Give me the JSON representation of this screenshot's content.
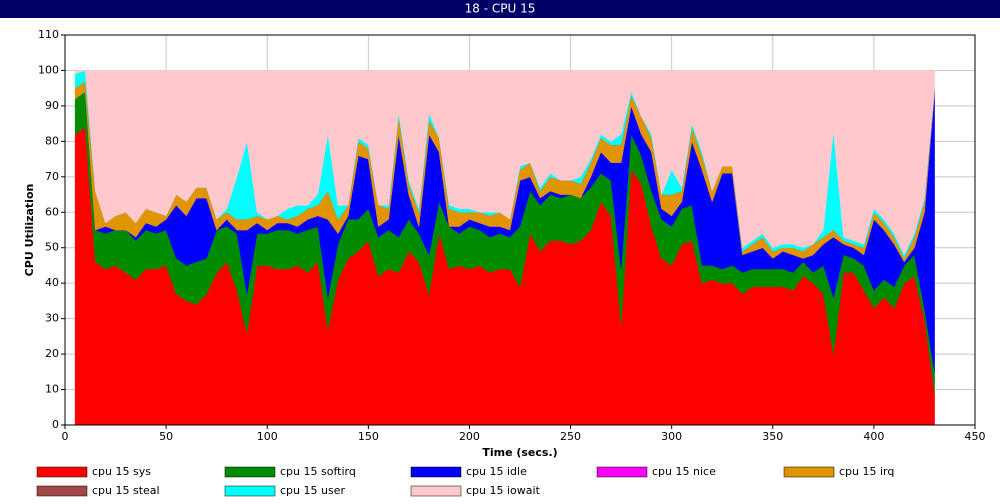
{
  "chart_data": {
    "type": "stacked_area",
    "title": "18 - CPU 15",
    "xlabel": "Time (secs.)",
    "ylabel": "CPU Utilization",
    "xlim": [
      0,
      450
    ],
    "xticks": [
      0,
      50,
      100,
      150,
      200,
      250,
      300,
      350,
      400,
      450
    ],
    "ylim": [
      0,
      110
    ],
    "yticks": [
      0,
      10,
      20,
      30,
      40,
      50,
      60,
      70,
      80,
      90,
      100,
      110
    ],
    "grid": true,
    "x": [
      5,
      10,
      15,
      20,
      25,
      30,
      35,
      40,
      45,
      50,
      55,
      60,
      65,
      70,
      75,
      80,
      85,
      90,
      95,
      100,
      105,
      110,
      115,
      120,
      125,
      130,
      135,
      140,
      145,
      150,
      155,
      160,
      165,
      170,
      175,
      180,
      185,
      190,
      195,
      200,
      205,
      210,
      215,
      220,
      225,
      230,
      235,
      240,
      245,
      250,
      255,
      260,
      265,
      270,
      275,
      280,
      285,
      290,
      295,
      300,
      305,
      310,
      315,
      320,
      325,
      330,
      335,
      340,
      345,
      350,
      355,
      360,
      365,
      370,
      375,
      380,
      385,
      390,
      395,
      400,
      405,
      410,
      415,
      420,
      425,
      430
    ],
    "series": [
      {
        "name": "cpu 15 sys",
        "color": "#ff0000",
        "values": [
          82,
          84,
          46,
          44,
          45,
          43,
          41,
          44,
          44,
          45,
          37,
          35,
          34,
          37,
          43,
          46,
          38,
          26,
          45,
          45,
          44,
          44,
          45,
          43,
          46,
          27,
          41,
          47,
          49,
          52,
          42,
          44,
          43,
          49,
          46,
          37,
          54,
          44,
          45,
          44,
          45,
          43,
          44,
          44,
          39,
          54,
          49,
          52,
          52,
          51,
          52,
          55,
          63,
          59,
          28,
          72,
          68,
          56,
          47,
          45,
          51,
          52,
          40,
          41,
          40,
          40,
          37,
          39,
          39,
          39,
          39,
          38,
          42,
          40,
          37,
          20,
          43,
          43,
          38,
          33,
          36,
          33,
          40,
          42,
          30,
          9
        ]
      },
      {
        "name": "cpu 15 softirq",
        "color": "#008c00",
        "values": [
          10,
          10,
          9,
          10,
          10,
          12,
          11,
          11,
          10,
          10,
          10,
          10,
          12,
          10,
          12,
          10,
          16,
          11,
          9,
          9,
          11,
          11,
          9,
          12,
          10,
          9,
          10,
          11,
          9,
          9,
          11,
          11,
          10,
          9,
          8,
          11,
          9,
          12,
          9,
          12,
          10,
          10,
          10,
          9,
          17,
          12,
          13,
          13,
          12,
          14,
          12,
          12,
          8,
          10,
          16,
          10,
          8,
          10,
          11,
          11,
          10,
          10,
          5,
          4,
          4,
          5,
          6,
          5,
          5,
          5,
          5,
          5,
          4,
          3,
          8,
          16,
          5,
          4,
          7,
          5,
          5,
          6,
          5,
          6,
          3,
          6
        ]
      },
      {
        "name": "cpu 15 idle",
        "color": "#0000ff",
        "values": [
          0,
          0,
          0,
          2,
          0,
          0,
          1,
          2,
          2,
          3,
          15,
          14,
          18,
          17,
          0,
          2,
          1,
          18,
          3,
          1,
          2,
          2,
          2,
          3,
          3,
          22,
          3,
          1,
          18,
          14,
          3,
          3,
          29,
          7,
          2,
          34,
          14,
          0,
          2,
          2,
          2,
          3,
          2,
          2,
          13,
          4,
          2,
          1,
          1,
          0,
          0,
          3,
          6,
          5,
          30,
          8,
          6,
          11,
          3,
          3,
          2,
          18,
          27,
          18,
          27,
          26,
          5,
          5,
          6,
          3,
          5,
          5,
          1,
          5,
          6,
          17,
          3,
          3,
          3,
          20,
          14,
          12,
          1,
          2,
          27,
          79
        ]
      },
      {
        "name": "cpu 15 nice",
        "color": "#ff00ff",
        "values": [
          0,
          0,
          0,
          0,
          0,
          0,
          0,
          0,
          0,
          0,
          0,
          0,
          0,
          0,
          0,
          0,
          0,
          0,
          0,
          0,
          0,
          0,
          0,
          0,
          0,
          0,
          0,
          0,
          0,
          0,
          0,
          0,
          0,
          0,
          0,
          0,
          0,
          0,
          0,
          0,
          0,
          0,
          0,
          0,
          0,
          0,
          0,
          0,
          0,
          0,
          0,
          0,
          0,
          0,
          0,
          0,
          0,
          0,
          0,
          0,
          0,
          0,
          0,
          0,
          0,
          0,
          0,
          0,
          0,
          0,
          0,
          0,
          0,
          0,
          0,
          0,
          0,
          0,
          0,
          0,
          0,
          0,
          0,
          0,
          0,
          0
        ]
      },
      {
        "name": "cpu 15 irq",
        "color": "#e09400",
        "values": [
          3,
          3,
          11,
          1,
          4,
          5,
          4,
          4,
          4,
          1,
          3,
          4,
          3,
          3,
          3,
          2,
          3,
          3,
          2,
          3,
          2,
          1,
          3,
          3,
          3,
          8,
          4,
          3,
          4,
          3,
          6,
          3,
          5,
          3,
          4,
          4,
          4,
          5,
          4,
          2,
          3,
          3,
          4,
          3,
          3,
          4,
          2,
          4,
          4,
          4,
          4,
          4,
          4,
          5,
          5,
          3,
          5,
          4,
          4,
          6,
          3,
          4,
          4,
          3,
          2,
          2,
          1,
          2,
          3,
          2,
          1,
          2,
          2,
          3,
          2,
          2,
          1,
          1,
          2,
          2,
          2,
          2,
          1,
          3,
          3,
          1
        ]
      },
      {
        "name": "cpu 15 steal",
        "color": "#a04848",
        "values": [
          0,
          0,
          0,
          0,
          0,
          0,
          0,
          0,
          0,
          0,
          0,
          0,
          0,
          0,
          0,
          0,
          0,
          0,
          0,
          0,
          0,
          0,
          0,
          0,
          0,
          0,
          0,
          0,
          0,
          0,
          0,
          0,
          0,
          0,
          0,
          0,
          0,
          0,
          0,
          0,
          0,
          0,
          0,
          0,
          0,
          0,
          0,
          0,
          0,
          0,
          0,
          0,
          0,
          0,
          0,
          0,
          0,
          0,
          0,
          0,
          0,
          0,
          0,
          0,
          0,
          0,
          0,
          0,
          0,
          0,
          0,
          0,
          0,
          0,
          0,
          0,
          0,
          0,
          0,
          0,
          0,
          0,
          0,
          0,
          0,
          0
        ]
      },
      {
        "name": "cpu 15 user",
        "color": "#00ffff",
        "values": [
          4,
          3,
          0,
          0,
          0,
          0,
          0,
          0,
          0,
          0,
          0,
          0,
          0,
          0,
          0,
          1,
          12,
          22,
          1,
          0,
          0,
          3,
          3,
          1,
          3,
          16,
          4,
          0,
          1,
          1,
          0,
          1,
          1,
          1,
          1,
          2,
          0,
          1,
          1,
          1,
          0,
          1,
          0,
          0,
          1,
          0,
          1,
          1,
          0,
          0,
          2,
          1,
          1,
          1,
          3,
          1,
          0,
          1,
          0,
          7,
          1,
          1,
          1,
          0,
          0,
          0,
          1,
          1,
          1,
          1,
          1,
          1,
          1,
          0,
          2,
          28,
          1,
          1,
          1,
          1,
          1,
          1,
          1,
          1,
          1,
          0
        ]
      },
      {
        "name": "cpu 15 iowait",
        "color": "#ffc8cc",
        "values": [
          1,
          0,
          34,
          43,
          41,
          40,
          43,
          39,
          40,
          41,
          35,
          37,
          33,
          33,
          42,
          39,
          30,
          20,
          40,
          42,
          41,
          39,
          38,
          38,
          35,
          18,
          38,
          38,
          19,
          21,
          38,
          38,
          12,
          31,
          39,
          12,
          19,
          38,
          39,
          39,
          40,
          40,
          40,
          42,
          27,
          26,
          33,
          29,
          31,
          31,
          30,
          25,
          18,
          20,
          18,
          6,
          13,
          18,
          35,
          28,
          33,
          15,
          23,
          34,
          27,
          27,
          50,
          48,
          46,
          50,
          49,
          49,
          50,
          49,
          45,
          17,
          47,
          48,
          49,
          39,
          42,
          46,
          52,
          46,
          36,
          5
        ]
      }
    ]
  }
}
